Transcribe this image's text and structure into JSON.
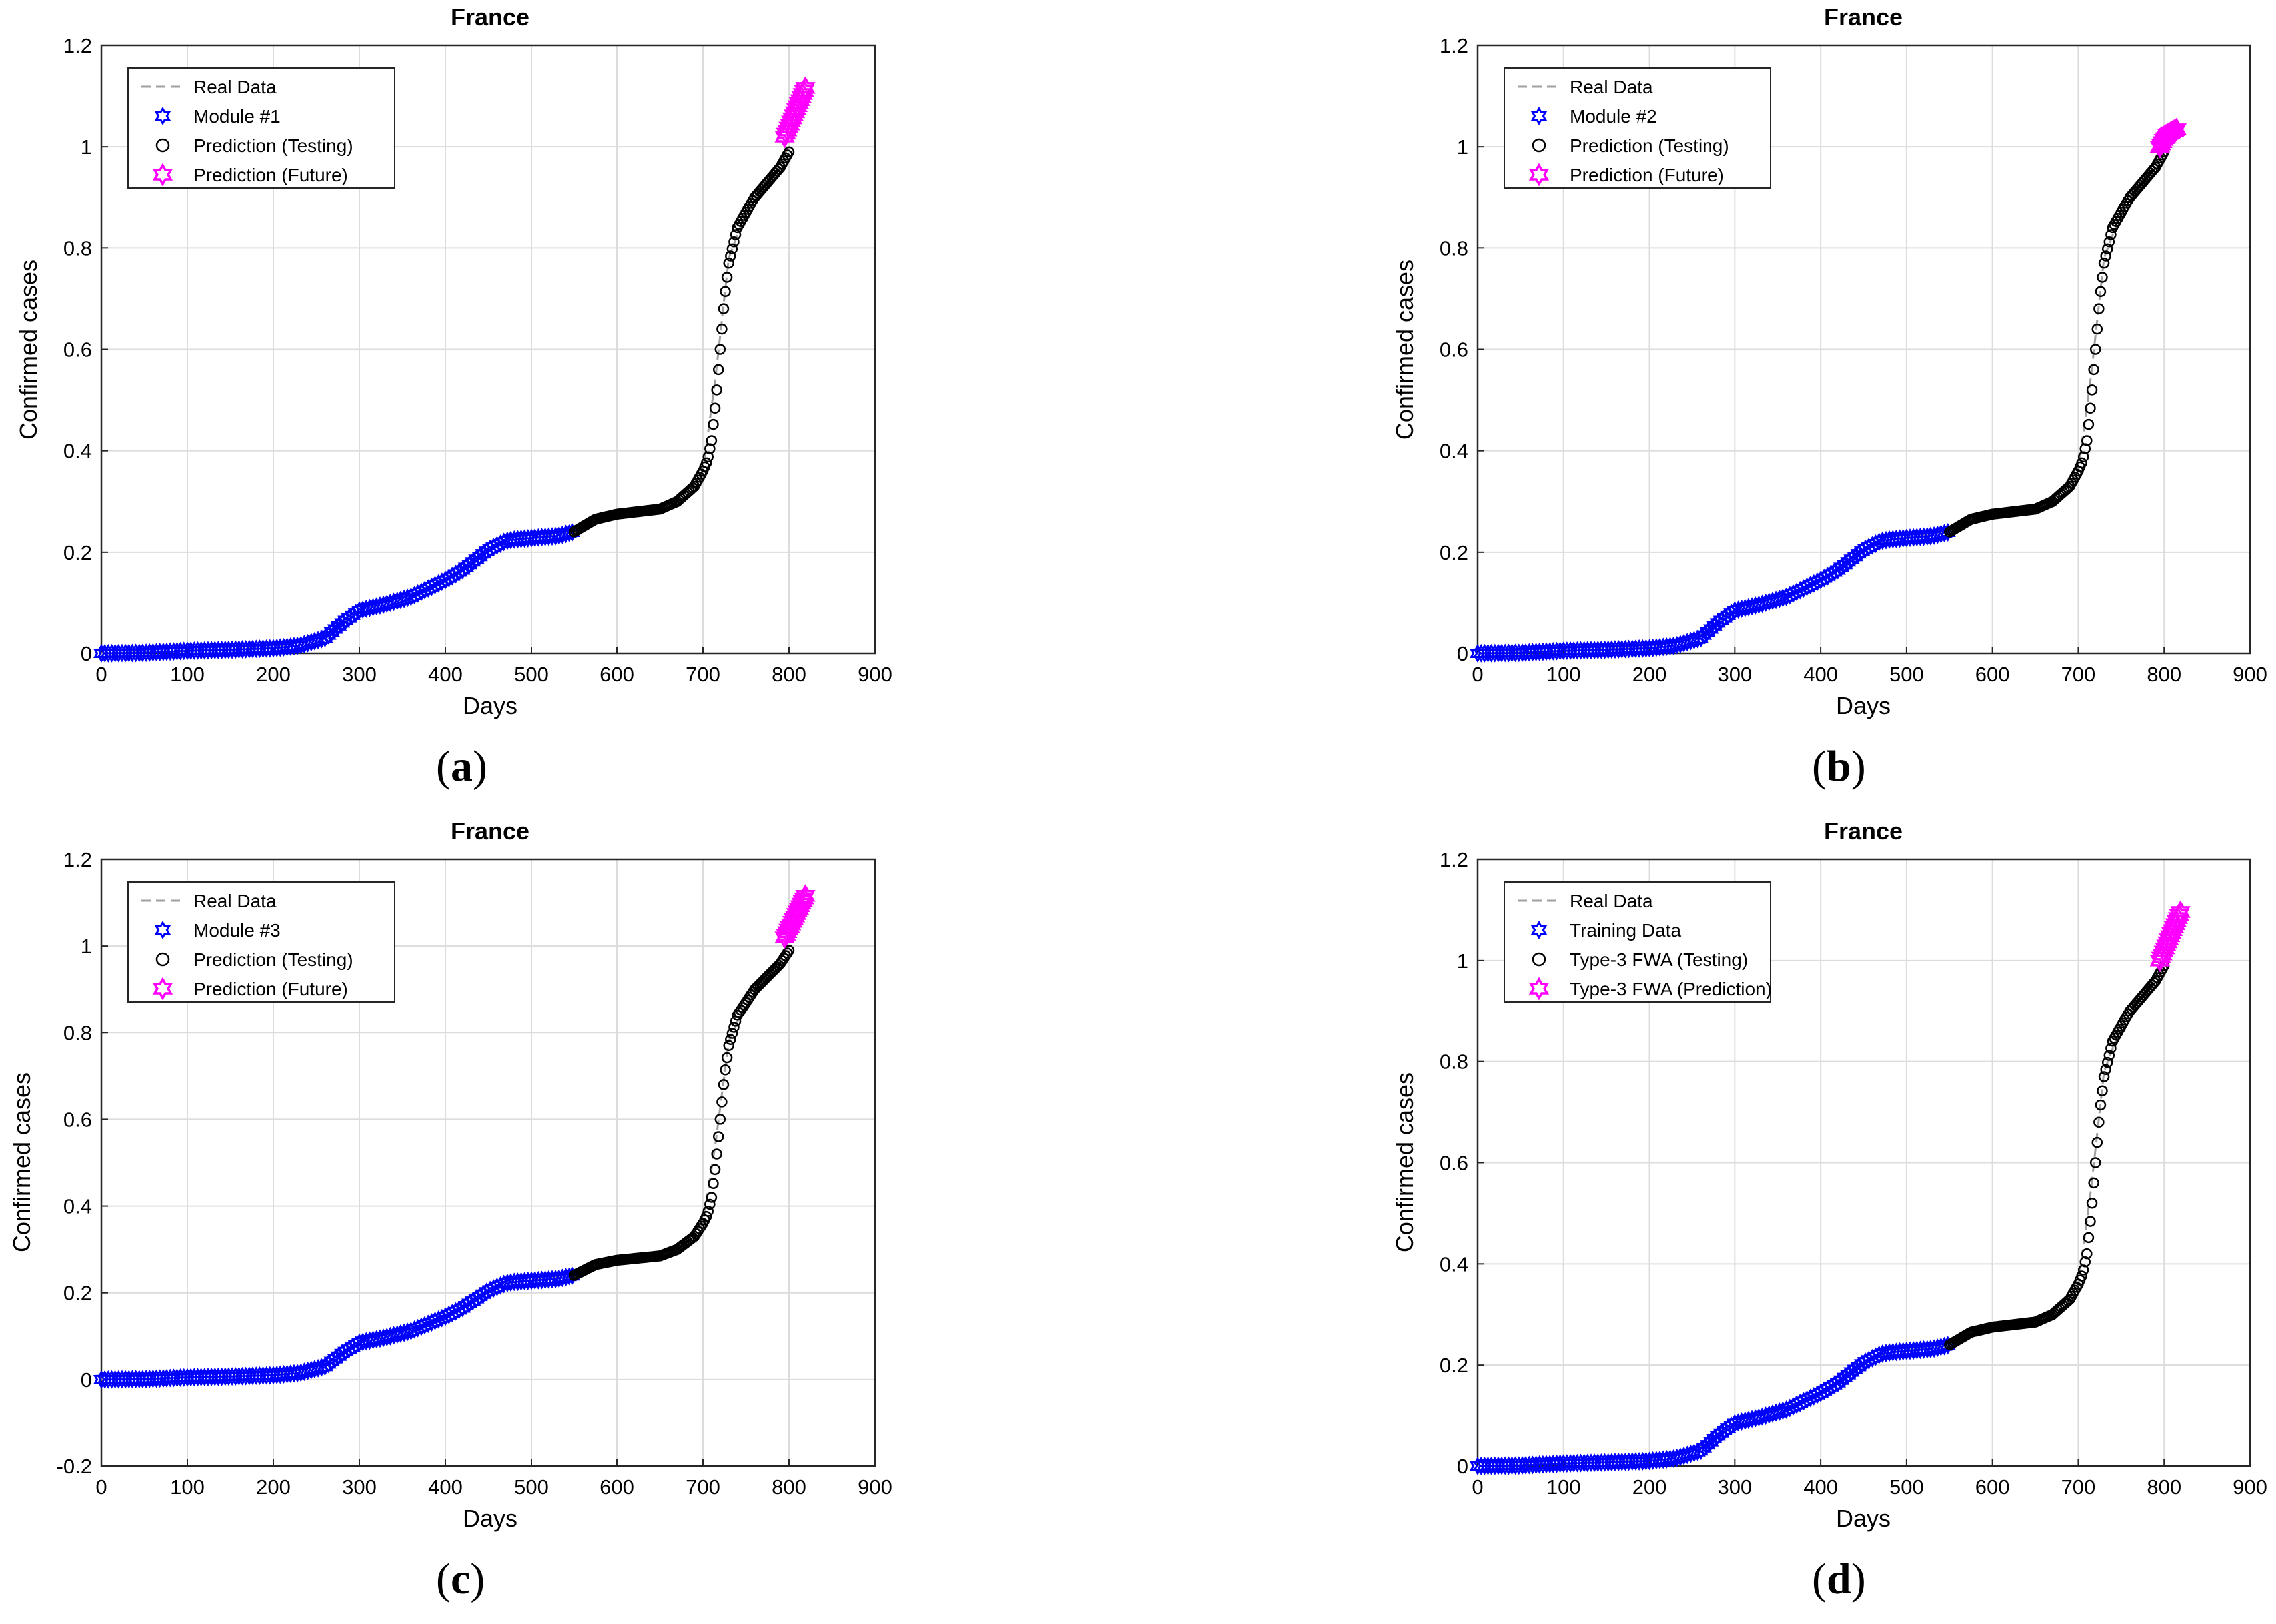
{
  "figure": {
    "panels": [
      {
        "caption_open": "(",
        "caption_letter": "a",
        "caption_close": ")",
        "legend": [
          "Real Data",
          "Module #1",
          "Prediction (Testing)",
          "Prediction (Future)"
        ]
      },
      {
        "caption_open": "(",
        "caption_letter": "b",
        "caption_close": ")",
        "legend": [
          "Real Data",
          "Module #2",
          "Prediction (Testing)",
          "Prediction (Future)"
        ]
      },
      {
        "caption_open": "(",
        "caption_letter": "c",
        "caption_close": ")",
        "legend": [
          "Real Data",
          "Module #3",
          "Prediction (Testing)",
          "Prediction (Future)"
        ]
      },
      {
        "caption_open": "(",
        "caption_letter": "d",
        "caption_close": ")",
        "legend": [
          "Real Data",
          "Training Data",
          "Type-3 FWA (Testing)",
          "Type-3 FWA (Prediction)"
        ]
      }
    ]
  },
  "colors": {
    "real_data": "#a0a0a0",
    "training": "#0000ff",
    "testing": "#000000",
    "future": "#ff00ff",
    "grid": "#dcdcdc"
  },
  "chart_data": [
    {
      "type": "scatter",
      "title": "France",
      "xlabel": "Days",
      "ylabel": "Confirmed cases",
      "xlim": [
        0,
        900
      ],
      "ylim": [
        0,
        1.2
      ],
      "xticks": [
        "0",
        "100",
        "200",
        "300",
        "400",
        "500",
        "600",
        "700",
        "800",
        "900"
      ],
      "yticks": [
        "0",
        "0.2",
        "0.4",
        "0.6",
        "0.8",
        "1",
        "1.2"
      ],
      "grid": true,
      "legend_position": "top-left",
      "series": [
        {
          "name": "Real Data",
          "style": "dashed-line",
          "x": [
            0,
            100,
            200,
            250,
            280,
            300,
            350,
            400,
            420,
            450,
            480,
            550,
            600,
            650,
            680,
            700,
            715,
            730,
            750,
            770,
            790,
            800
          ],
          "y": [
            0,
            0.005,
            0.012,
            0.03,
            0.06,
            0.085,
            0.11,
            0.145,
            0.165,
            0.205,
            0.225,
            0.24,
            0.275,
            0.285,
            0.305,
            0.36,
            0.55,
            0.78,
            0.87,
            0.92,
            0.97,
            1.0
          ]
        },
        {
          "name": "Module #1",
          "style": "blue-hexagram",
          "x": [
            0,
            50,
            100,
            150,
            200,
            230,
            260,
            280,
            300,
            330,
            360,
            400,
            420,
            450,
            470,
            480,
            500,
            530,
            550
          ],
          "y": [
            0,
            0.001,
            0.005,
            0.007,
            0.01,
            0.015,
            0.03,
            0.06,
            0.085,
            0.097,
            0.112,
            0.145,
            0.165,
            0.205,
            0.222,
            0.225,
            0.228,
            0.232,
            0.24
          ]
        },
        {
          "name": "Prediction (Testing)",
          "style": "black-circle",
          "x": [
            550,
            575,
            600,
            625,
            650,
            670,
            690,
            700,
            705,
            710,
            715,
            720,
            725,
            730,
            740,
            750,
            760,
            775,
            790,
            800
          ],
          "y": [
            0.24,
            0.265,
            0.275,
            0.28,
            0.285,
            0.3,
            0.33,
            0.36,
            0.38,
            0.42,
            0.5,
            0.6,
            0.7,
            0.77,
            0.84,
            0.87,
            0.9,
            0.93,
            0.96,
            0.99
          ]
        },
        {
          "name": "Prediction (Future)",
          "style": "magenta-hexagram",
          "x": [
            795,
            800,
            805,
            810,
            815,
            820
          ],
          "y": [
            1.02,
            1.04,
            1.06,
            1.08,
            1.1,
            1.12
          ]
        }
      ]
    },
    {
      "type": "scatter",
      "title": "France",
      "xlabel": "Days",
      "ylabel": "Confirmed cases",
      "xlim": [
        0,
        900
      ],
      "ylim": [
        0,
        1.2
      ],
      "xticks": [
        "0",
        "100",
        "200",
        "300",
        "400",
        "500",
        "600",
        "700",
        "800",
        "900"
      ],
      "yticks": [
        "0",
        "0.2",
        "0.4",
        "0.6",
        "0.8",
        "1",
        "1.2"
      ],
      "grid": true,
      "legend_position": "top-left",
      "series": [
        {
          "name": "Real Data",
          "style": "dashed-line",
          "x": [
            0,
            100,
            200,
            250,
            280,
            300,
            350,
            400,
            420,
            450,
            480,
            550,
            600,
            650,
            680,
            700,
            715,
            730,
            750,
            770,
            790,
            800
          ],
          "y": [
            0,
            0.005,
            0.012,
            0.03,
            0.06,
            0.085,
            0.11,
            0.145,
            0.165,
            0.205,
            0.225,
            0.24,
            0.275,
            0.285,
            0.305,
            0.36,
            0.55,
            0.78,
            0.87,
            0.92,
            0.97,
            1.0
          ]
        },
        {
          "name": "Module #2",
          "style": "blue-hexagram",
          "x": [
            0,
            50,
            100,
            150,
            200,
            230,
            260,
            280,
            300,
            330,
            360,
            400,
            420,
            450,
            470,
            480,
            500,
            530,
            550
          ],
          "y": [
            0,
            0.001,
            0.005,
            0.007,
            0.01,
            0.015,
            0.03,
            0.06,
            0.085,
            0.097,
            0.112,
            0.145,
            0.165,
            0.205,
            0.222,
            0.225,
            0.228,
            0.232,
            0.24
          ]
        },
        {
          "name": "Prediction (Testing)",
          "style": "black-circle",
          "x": [
            550,
            575,
            600,
            625,
            650,
            670,
            690,
            700,
            705,
            710,
            715,
            720,
            725,
            730,
            740,
            750,
            760,
            775,
            790,
            800
          ],
          "y": [
            0.24,
            0.265,
            0.275,
            0.28,
            0.285,
            0.3,
            0.33,
            0.36,
            0.38,
            0.42,
            0.5,
            0.6,
            0.7,
            0.77,
            0.84,
            0.87,
            0.9,
            0.93,
            0.96,
            0.99
          ]
        },
        {
          "name": "Prediction (Future)",
          "style": "magenta-hexagram",
          "x": [
            795,
            800,
            805,
            810,
            815
          ],
          "y": [
            1.0,
            1.015,
            1.025,
            1.03,
            1.035
          ]
        }
      ]
    },
    {
      "type": "scatter",
      "title": "France",
      "xlabel": "Days",
      "ylabel": "Confirmed cases",
      "xlim": [
        0,
        900
      ],
      "ylim": [
        -0.2,
        1.2
      ],
      "xticks": [
        "0",
        "100",
        "200",
        "300",
        "400",
        "500",
        "600",
        "700",
        "800",
        "900"
      ],
      "yticks": [
        "-0.2",
        "0",
        "0.2",
        "0.4",
        "0.6",
        "0.8",
        "1",
        "1.2"
      ],
      "grid": true,
      "legend_position": "top-left",
      "series": [
        {
          "name": "Real Data",
          "style": "dashed-line",
          "x": [
            0,
            100,
            200,
            250,
            280,
            300,
            350,
            400,
            420,
            450,
            480,
            550,
            600,
            650,
            680,
            700,
            715,
            730,
            750,
            770,
            790,
            800
          ],
          "y": [
            0,
            0.005,
            0.012,
            0.03,
            0.06,
            0.085,
            0.11,
            0.145,
            0.165,
            0.205,
            0.225,
            0.24,
            0.275,
            0.285,
            0.305,
            0.36,
            0.55,
            0.78,
            0.87,
            0.92,
            0.97,
            1.0
          ]
        },
        {
          "name": "Module #3",
          "style": "blue-hexagram",
          "x": [
            0,
            50,
            100,
            150,
            200,
            230,
            260,
            280,
            300,
            330,
            360,
            400,
            420,
            450,
            470,
            480,
            500,
            530,
            550
          ],
          "y": [
            0,
            0.001,
            0.005,
            0.007,
            0.01,
            0.015,
            0.03,
            0.06,
            0.085,
            0.097,
            0.112,
            0.145,
            0.165,
            0.205,
            0.222,
            0.225,
            0.228,
            0.232,
            0.24
          ]
        },
        {
          "name": "Prediction (Testing)",
          "style": "black-circle",
          "x": [
            550,
            575,
            600,
            625,
            650,
            670,
            690,
            700,
            705,
            710,
            715,
            720,
            725,
            730,
            740,
            750,
            760,
            775,
            790,
            800
          ],
          "y": [
            0.24,
            0.265,
            0.275,
            0.28,
            0.285,
            0.3,
            0.33,
            0.36,
            0.38,
            0.42,
            0.5,
            0.6,
            0.7,
            0.77,
            0.84,
            0.87,
            0.9,
            0.93,
            0.96,
            0.99
          ]
        },
        {
          "name": "Prediction (Future)",
          "style": "magenta-hexagram",
          "x": [
            795,
            800,
            805,
            810,
            815,
            820
          ],
          "y": [
            1.02,
            1.04,
            1.06,
            1.08,
            1.1,
            1.12
          ]
        }
      ]
    },
    {
      "type": "scatter",
      "title": "France",
      "xlabel": "Days",
      "ylabel": "Confirmed cases",
      "xlim": [
        0,
        900
      ],
      "ylim": [
        0,
        1.2
      ],
      "xticks": [
        "0",
        "100",
        "200",
        "300",
        "400",
        "500",
        "600",
        "700",
        "800",
        "900"
      ],
      "yticks": [
        "0",
        "0.2",
        "0.4",
        "0.6",
        "0.8",
        "1",
        "1.2"
      ],
      "grid": true,
      "legend_position": "top-left",
      "series": [
        {
          "name": "Real Data",
          "style": "dashed-line",
          "x": [
            0,
            100,
            200,
            250,
            280,
            300,
            350,
            400,
            420,
            450,
            480,
            550,
            600,
            650,
            680,
            700,
            715,
            730,
            750,
            770,
            790,
            800
          ],
          "y": [
            0,
            0.005,
            0.012,
            0.03,
            0.06,
            0.085,
            0.11,
            0.145,
            0.165,
            0.205,
            0.225,
            0.24,
            0.275,
            0.285,
            0.305,
            0.36,
            0.55,
            0.78,
            0.87,
            0.92,
            0.97,
            1.0
          ]
        },
        {
          "name": "Training Data",
          "style": "blue-hexagram",
          "x": [
            0,
            50,
            100,
            150,
            200,
            230,
            260,
            280,
            300,
            330,
            360,
            400,
            420,
            450,
            470,
            480,
            500,
            530,
            550
          ],
          "y": [
            0,
            0.001,
            0.005,
            0.007,
            0.01,
            0.015,
            0.03,
            0.06,
            0.085,
            0.097,
            0.112,
            0.145,
            0.165,
            0.205,
            0.222,
            0.225,
            0.228,
            0.232,
            0.24
          ]
        },
        {
          "name": "Type-3 FWA (Testing)",
          "style": "black-circle",
          "x": [
            550,
            575,
            600,
            625,
            650,
            670,
            690,
            700,
            705,
            710,
            715,
            720,
            725,
            730,
            740,
            750,
            760,
            775,
            790,
            800
          ],
          "y": [
            0.24,
            0.265,
            0.275,
            0.28,
            0.285,
            0.3,
            0.33,
            0.36,
            0.38,
            0.42,
            0.5,
            0.6,
            0.7,
            0.77,
            0.84,
            0.87,
            0.9,
            0.93,
            0.96,
            0.99
          ]
        },
        {
          "name": "Type-3 FWA (Prediction)",
          "style": "magenta-hexagram",
          "x": [
            795,
            800,
            805,
            810,
            815,
            820
          ],
          "y": [
            1.0,
            1.02,
            1.04,
            1.06,
            1.08,
            1.1
          ]
        }
      ]
    }
  ]
}
